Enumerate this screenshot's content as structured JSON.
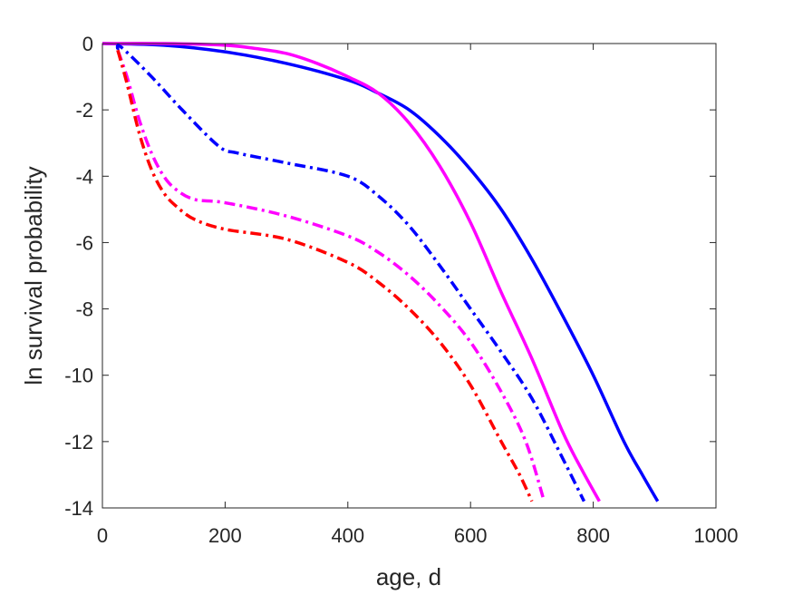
{
  "chart_data": {
    "type": "line",
    "xlabel": "age, d",
    "ylabel": "ln survival probability",
    "xlim": [
      0,
      1000
    ],
    "ylim": [
      -14,
      0
    ],
    "xticks": [
      0,
      200,
      400,
      600,
      800,
      1000
    ],
    "yticks": [
      0,
      -2,
      -4,
      -6,
      -8,
      -10,
      -12,
      -14
    ],
    "grid": false,
    "series": [
      {
        "style": "solid",
        "color": "#0000ff",
        "x": [
          0,
          100,
          200,
          300,
          400,
          450,
          500,
          550,
          600,
          650,
          700,
          750,
          800,
          850,
          880,
          905
        ],
        "y": [
          0,
          -0.05,
          -0.25,
          -0.6,
          -1.1,
          -1.5,
          -2.0,
          -2.8,
          -3.8,
          -5.0,
          -6.5,
          -8.2,
          -10.0,
          -12.0,
          -13.0,
          -13.8
        ]
      },
      {
        "style": "solid",
        "color": "#ff00ff",
        "x": [
          0,
          100,
          200,
          250,
          300,
          350,
          400,
          450,
          500,
          550,
          600,
          650,
          700,
          750,
          780,
          810
        ],
        "y": [
          0,
          0,
          -0.05,
          -0.15,
          -0.3,
          -0.6,
          -1.0,
          -1.5,
          -2.4,
          -3.7,
          -5.4,
          -7.5,
          -9.5,
          -11.7,
          -12.8,
          -13.8
        ]
      },
      {
        "style": "dashdot",
        "color": "#0000ff",
        "x": [
          25,
          30,
          80,
          130,
          190,
          220,
          300,
          400,
          450,
          500,
          550,
          600,
          650,
          700,
          750,
          785
        ],
        "y": [
          -0.2,
          -0.1,
          -1.0,
          -2.0,
          -3.1,
          -3.3,
          -3.6,
          -4.0,
          -4.6,
          -5.5,
          -6.7,
          -8.0,
          -9.3,
          -10.7,
          -12.5,
          -13.8
        ]
      },
      {
        "style": "dashdot",
        "color": "#ff00ff",
        "x": [
          25,
          40,
          60,
          80,
          100,
          120,
          150,
          200,
          300,
          400,
          450,
          500,
          550,
          600,
          650,
          690,
          720
        ],
        "y": [
          -0.2,
          -1.0,
          -2.3,
          -3.3,
          -4.0,
          -4.4,
          -4.7,
          -4.8,
          -5.2,
          -5.8,
          -6.3,
          -7.0,
          -7.9,
          -9.0,
          -10.5,
          -12.0,
          -13.8
        ]
      },
      {
        "style": "dashdot",
        "color": "#ff0000",
        "x": [
          25,
          40,
          60,
          80,
          100,
          120,
          150,
          200,
          300,
          400,
          450,
          500,
          550,
          600,
          650,
          680,
          700
        ],
        "y": [
          -0.2,
          -1.2,
          -2.7,
          -3.8,
          -4.5,
          -4.9,
          -5.3,
          -5.6,
          -5.9,
          -6.6,
          -7.2,
          -8.0,
          -9.0,
          -10.3,
          -12.0,
          -13.0,
          -13.8
        ]
      }
    ]
  }
}
